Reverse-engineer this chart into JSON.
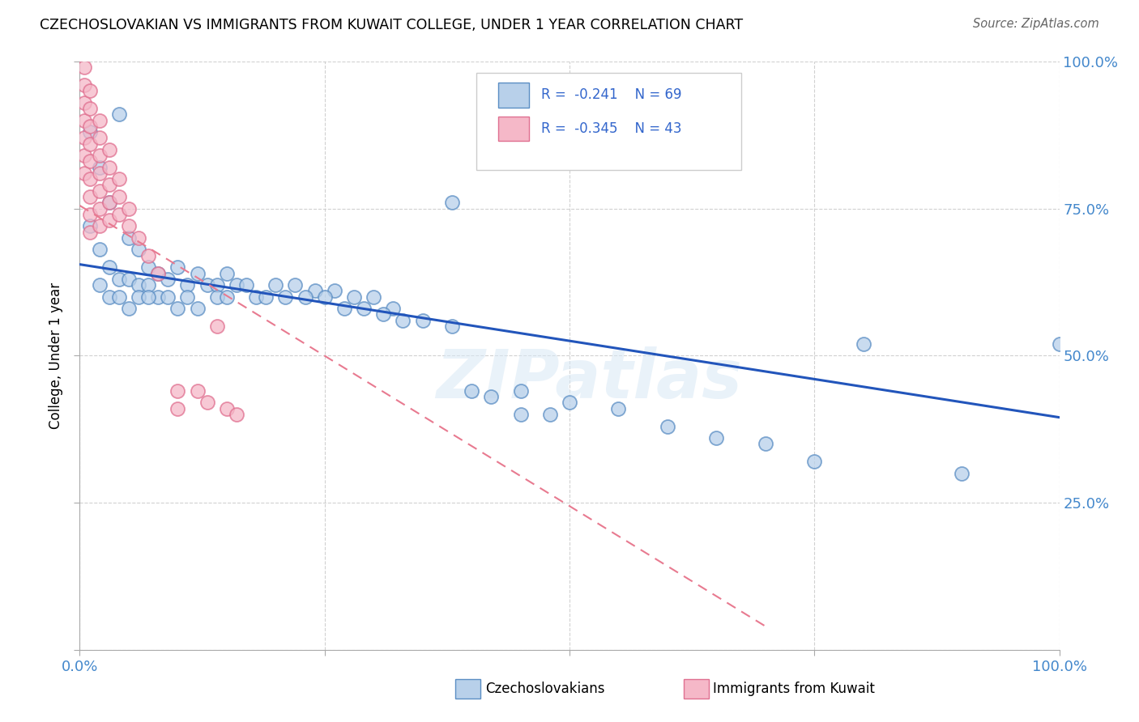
{
  "title": "CZECHOSLOVAKIAN VS IMMIGRANTS FROM KUWAIT COLLEGE, UNDER 1 YEAR CORRELATION CHART",
  "source": "Source: ZipAtlas.com",
  "ylabel": "College, Under 1 year",
  "xlim": [
    0.0,
    1.0
  ],
  "ylim": [
    0.0,
    1.0
  ],
  "xticks": [
    0.0,
    0.25,
    0.5,
    0.75,
    1.0
  ],
  "yticks": [
    0.0,
    0.25,
    0.5,
    0.75,
    1.0
  ],
  "xticklabels": [
    "0.0%",
    "",
    "",
    "",
    "100.0%"
  ],
  "yticklabels_right": [
    "",
    "25.0%",
    "50.0%",
    "75.0%",
    "100.0%"
  ],
  "legend_r1": "R =  -0.241",
  "legend_n1": "N = 69",
  "legend_r2": "R =  -0.345",
  "legend_n2": "N = 43",
  "legend_label1": "Czechoslovakians",
  "legend_label2": "Immigrants from Kuwait",
  "blue_face": "#b8d0ea",
  "blue_edge": "#5b8ec4",
  "pink_face": "#f5b8c8",
  "pink_edge": "#e07090",
  "blue_line_color": "#2255bb",
  "pink_line_color": "#e87a90",
  "blue_scatter": [
    [
      0.01,
      0.88
    ],
    [
      0.02,
      0.82
    ],
    [
      0.03,
      0.76
    ],
    [
      0.01,
      0.72
    ],
    [
      0.02,
      0.68
    ],
    [
      0.04,
      0.91
    ],
    [
      0.03,
      0.65
    ],
    [
      0.05,
      0.7
    ],
    [
      0.04,
      0.63
    ],
    [
      0.02,
      0.62
    ],
    [
      0.06,
      0.68
    ],
    [
      0.05,
      0.63
    ],
    [
      0.06,
      0.62
    ],
    [
      0.07,
      0.65
    ],
    [
      0.07,
      0.62
    ],
    [
      0.03,
      0.6
    ],
    [
      0.04,
      0.6
    ],
    [
      0.08,
      0.64
    ],
    [
      0.06,
      0.6
    ],
    [
      0.09,
      0.63
    ],
    [
      0.08,
      0.6
    ],
    [
      0.05,
      0.58
    ],
    [
      0.07,
      0.6
    ],
    [
      0.1,
      0.65
    ],
    [
      0.09,
      0.6
    ],
    [
      0.1,
      0.58
    ],
    [
      0.11,
      0.62
    ],
    [
      0.12,
      0.64
    ],
    [
      0.11,
      0.6
    ],
    [
      0.13,
      0.62
    ],
    [
      0.12,
      0.58
    ],
    [
      0.14,
      0.62
    ],
    [
      0.15,
      0.64
    ],
    [
      0.14,
      0.6
    ],
    [
      0.16,
      0.62
    ],
    [
      0.15,
      0.6
    ],
    [
      0.17,
      0.62
    ],
    [
      0.18,
      0.6
    ],
    [
      0.2,
      0.62
    ],
    [
      0.19,
      0.6
    ],
    [
      0.22,
      0.62
    ],
    [
      0.21,
      0.6
    ],
    [
      0.24,
      0.61
    ],
    [
      0.23,
      0.6
    ],
    [
      0.26,
      0.61
    ],
    [
      0.25,
      0.6
    ],
    [
      0.28,
      0.6
    ],
    [
      0.3,
      0.6
    ],
    [
      0.27,
      0.58
    ],
    [
      0.29,
      0.58
    ],
    [
      0.32,
      0.58
    ],
    [
      0.31,
      0.57
    ],
    [
      0.35,
      0.56
    ],
    [
      0.33,
      0.56
    ],
    [
      0.38,
      0.55
    ],
    [
      0.4,
      0.44
    ],
    [
      0.42,
      0.43
    ],
    [
      0.45,
      0.44
    ],
    [
      0.5,
      0.42
    ],
    [
      0.38,
      0.76
    ],
    [
      0.55,
      0.41
    ],
    [
      0.45,
      0.4
    ],
    [
      0.48,
      0.4
    ],
    [
      0.6,
      0.38
    ],
    [
      0.65,
      0.36
    ],
    [
      0.7,
      0.35
    ],
    [
      0.75,
      0.32
    ],
    [
      0.8,
      0.52
    ],
    [
      0.9,
      0.3
    ],
    [
      1.0,
      0.52
    ]
  ],
  "pink_scatter": [
    [
      0.005,
      0.99
    ],
    [
      0.005,
      0.96
    ],
    [
      0.005,
      0.93
    ],
    [
      0.005,
      0.9
    ],
    [
      0.005,
      0.87
    ],
    [
      0.005,
      0.84
    ],
    [
      0.005,
      0.81
    ],
    [
      0.01,
      0.95
    ],
    [
      0.01,
      0.92
    ],
    [
      0.01,
      0.89
    ],
    [
      0.01,
      0.86
    ],
    [
      0.01,
      0.83
    ],
    [
      0.01,
      0.8
    ],
    [
      0.01,
      0.77
    ],
    [
      0.01,
      0.74
    ],
    [
      0.01,
      0.71
    ],
    [
      0.02,
      0.9
    ],
    [
      0.02,
      0.87
    ],
    [
      0.02,
      0.84
    ],
    [
      0.02,
      0.81
    ],
    [
      0.02,
      0.78
    ],
    [
      0.02,
      0.75
    ],
    [
      0.02,
      0.72
    ],
    [
      0.03,
      0.85
    ],
    [
      0.03,
      0.82
    ],
    [
      0.03,
      0.79
    ],
    [
      0.03,
      0.76
    ],
    [
      0.03,
      0.73
    ],
    [
      0.04,
      0.8
    ],
    [
      0.04,
      0.77
    ],
    [
      0.04,
      0.74
    ],
    [
      0.05,
      0.75
    ],
    [
      0.05,
      0.72
    ],
    [
      0.06,
      0.7
    ],
    [
      0.07,
      0.67
    ],
    [
      0.08,
      0.64
    ],
    [
      0.1,
      0.44
    ],
    [
      0.1,
      0.41
    ],
    [
      0.12,
      0.44
    ],
    [
      0.13,
      0.42
    ],
    [
      0.14,
      0.55
    ],
    [
      0.15,
      0.41
    ],
    [
      0.16,
      0.4
    ]
  ],
  "blue_line_x": [
    0.0,
    1.0
  ],
  "blue_line_y": [
    0.655,
    0.395
  ],
  "pink_line_x": [
    0.0,
    0.7
  ],
  "pink_line_y": [
    0.755,
    0.04
  ],
  "watermark_text": "ZIPatlas",
  "bg_color": "#ffffff",
  "grid_color": "#cccccc",
  "tick_color": "#4488cc",
  "right_tick_color": "#4488cc"
}
